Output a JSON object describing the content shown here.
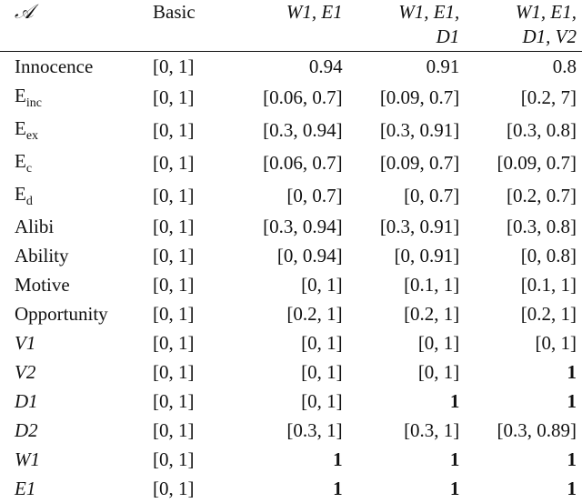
{
  "header": {
    "col0": "𝒜",
    "col1": "Basic",
    "col2_line1": "W1, E1",
    "col3_line1": "W1, E1,",
    "col3_line2": "D1",
    "col4_line1": "W1, E1,",
    "col4_line2": "D1, V2"
  },
  "rows": [
    {
      "label": "Innocence",
      "sub": "",
      "italic": false,
      "basic": "[0, 1]",
      "c2": "0.94",
      "c3": "0.91",
      "c4": "0.8",
      "bold": [
        false,
        false,
        false
      ]
    },
    {
      "label": "E",
      "sub": "inc",
      "italic": false,
      "basic": "[0, 1]",
      "c2": "[0.06, 0.7]",
      "c3": "[0.09, 0.7]",
      "c4": "[0.2, 7]",
      "bold": [
        false,
        false,
        false
      ]
    },
    {
      "label": "E",
      "sub": "ex",
      "italic": false,
      "basic": "[0, 1]",
      "c2": "[0.3, 0.94]",
      "c3": "[0.3, 0.91]",
      "c4": "[0.3, 0.8]",
      "bold": [
        false,
        false,
        false
      ]
    },
    {
      "label": "E",
      "sub": "c",
      "italic": false,
      "basic": "[0, 1]",
      "c2": "[0.06, 0.7]",
      "c3": "[0.09, 0.7]",
      "c4": "[0.09, 0.7]",
      "bold": [
        false,
        false,
        false
      ]
    },
    {
      "label": "E",
      "sub": "d",
      "italic": false,
      "basic": "[0, 1]",
      "c2": "[0, 0.7]",
      "c3": "[0, 0.7]",
      "c4": "[0.2, 0.7]",
      "bold": [
        false,
        false,
        false
      ]
    },
    {
      "label": "Alibi",
      "sub": "",
      "italic": false,
      "basic": "[0, 1]",
      "c2": "[0.3, 0.94]",
      "c3": "[0.3, 0.91]",
      "c4": "[0.3, 0.8]",
      "bold": [
        false,
        false,
        false
      ]
    },
    {
      "label": "Ability",
      "sub": "",
      "italic": false,
      "basic": "[0, 1]",
      "c2": "[0, 0.94]",
      "c3": "[0, 0.91]",
      "c4": "[0, 0.8]",
      "bold": [
        false,
        false,
        false
      ]
    },
    {
      "label": "Motive",
      "sub": "",
      "italic": false,
      "basic": "[0, 1]",
      "c2": "[0, 1]",
      "c3": "[0.1, 1]",
      "c4": "[0.1, 1]",
      "bold": [
        false,
        false,
        false
      ]
    },
    {
      "label": "Opportunity",
      "sub": "",
      "italic": false,
      "basic": "[0, 1]",
      "c2": "[0.2, 1]",
      "c3": "[0.2, 1]",
      "c4": "[0.2, 1]",
      "bold": [
        false,
        false,
        false
      ]
    },
    {
      "label": "V1",
      "sub": "",
      "italic": true,
      "basic": "[0, 1]",
      "c2": "[0, 1]",
      "c3": "[0, 1]",
      "c4": "[0, 1]",
      "bold": [
        false,
        false,
        false
      ]
    },
    {
      "label": "V2",
      "sub": "",
      "italic": true,
      "basic": "[0, 1]",
      "c2": "[0, 1]",
      "c3": "[0, 1]",
      "c4": "1",
      "bold": [
        false,
        false,
        true
      ]
    },
    {
      "label": "D1",
      "sub": "",
      "italic": true,
      "basic": "[0, 1]",
      "c2": "[0, 1]",
      "c3": "1",
      "c4": "1",
      "bold": [
        false,
        true,
        true
      ]
    },
    {
      "label": "D2",
      "sub": "",
      "italic": true,
      "basic": "[0, 1]",
      "c2": "[0.3, 1]",
      "c3": "[0.3, 1]",
      "c4": "[0.3, 0.89]",
      "bold": [
        false,
        false,
        false
      ]
    },
    {
      "label": "W1",
      "sub": "",
      "italic": true,
      "basic": "[0, 1]",
      "c2": "1",
      "c3": "1",
      "c4": "1",
      "bold": [
        true,
        true,
        true
      ]
    },
    {
      "label": "E1",
      "sub": "",
      "italic": true,
      "basic": "[0, 1]",
      "c2": "1",
      "c3": "1",
      "c4": "1",
      "bold": [
        true,
        true,
        true
      ]
    }
  ]
}
